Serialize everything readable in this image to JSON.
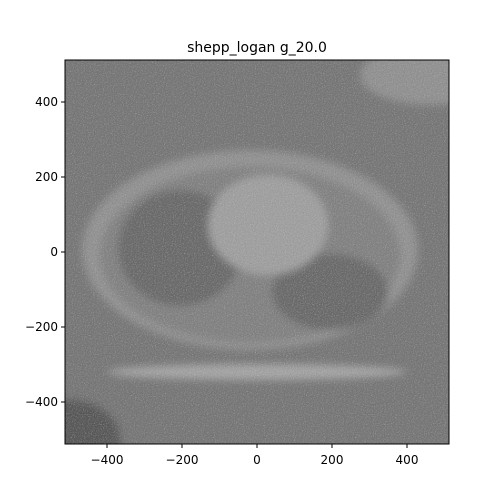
{
  "chart_data": {
    "type": "image",
    "title": "shepp_logan g_20.0",
    "xlabel": "",
    "ylabel": "",
    "xlim": [
      -512,
      512
    ],
    "ylim": [
      -512,
      512
    ],
    "x_ticks": [
      -400,
      -200,
      0,
      200,
      400
    ],
    "y_ticks": [
      400,
      200,
      0,
      -200,
      -400
    ],
    "x_tick_labels": [
      "−400",
      "−200",
      "0",
      "200",
      "400"
    ],
    "y_tick_labels": [
      "400",
      "200",
      "0",
      "−200",
      "−400"
    ],
    "colormap": "gray",
    "grid": false,
    "legend": "none"
  },
  "colors": {
    "background": "#ffffff",
    "image_mid": "#7a7a7a",
    "soft_tissue": "#9a9a9a",
    "lung": "#6e6e6e",
    "outside": "#5f5f5f"
  }
}
